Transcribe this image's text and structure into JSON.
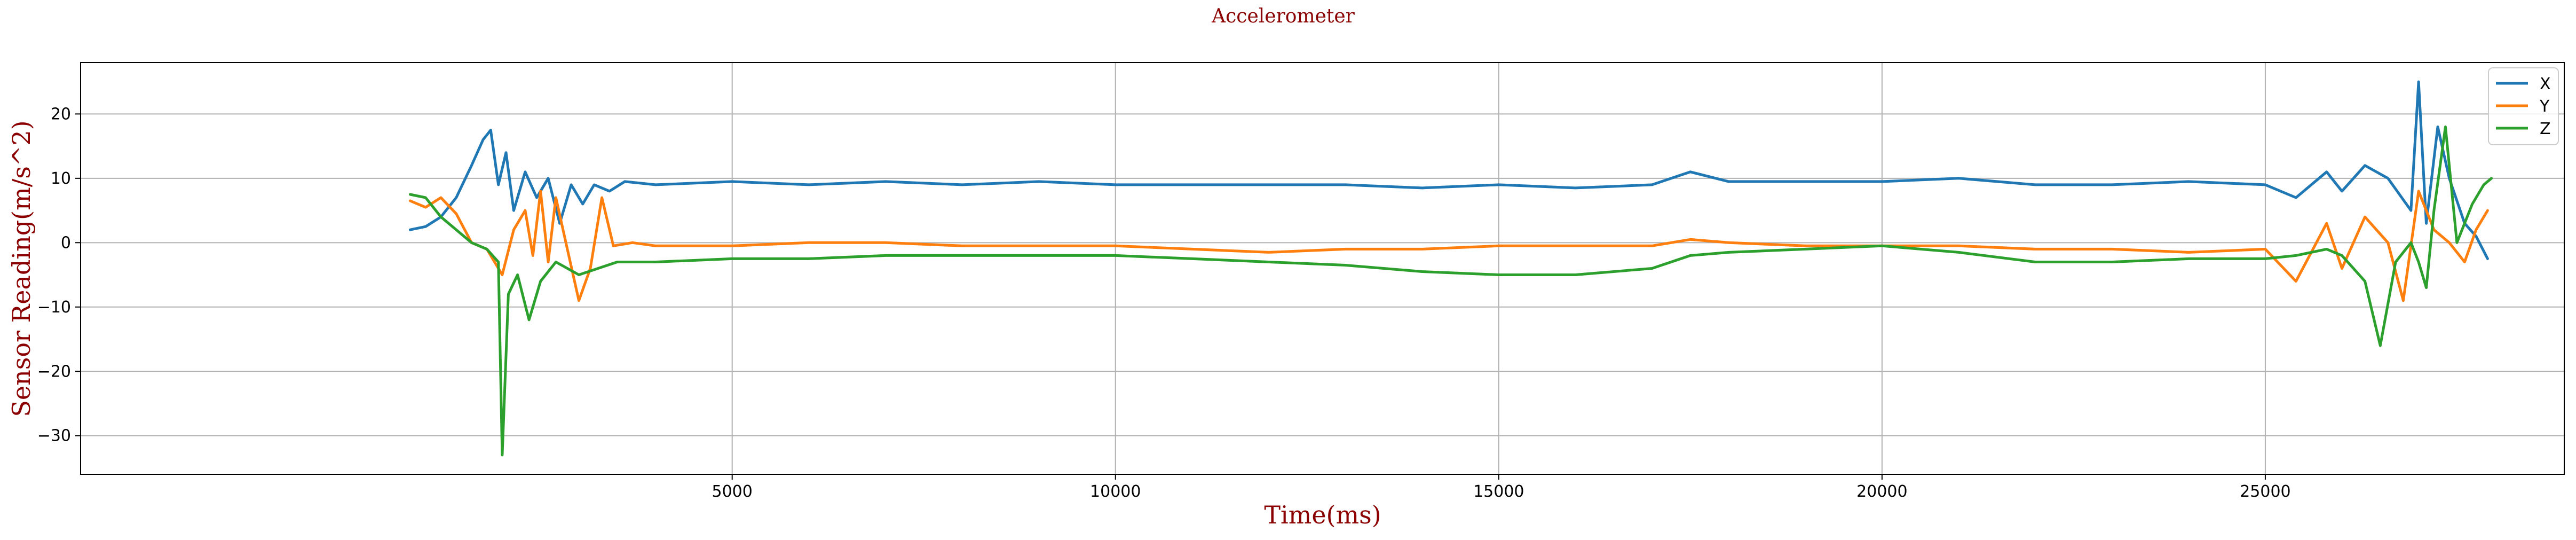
{
  "chart_data": {
    "type": "line",
    "title": "Accelerometer",
    "xlabel": "Time(ms)",
    "ylabel": "Sensor Reading(m/s^2)",
    "xlim": [
      -3500,
      28900
    ],
    "ylim": [
      -36,
      28
    ],
    "xticks": [
      5000,
      10000,
      15000,
      20000,
      25000
    ],
    "yticks": [
      -30,
      -20,
      -10,
      0,
      10,
      20
    ],
    "grid": true,
    "legend_position": "top-right",
    "series": [
      {
        "name": "X",
        "color": "#1f77b4",
        "points": [
          [
            800,
            2
          ],
          [
            1000,
            2.5
          ],
          [
            1200,
            4
          ],
          [
            1400,
            7
          ],
          [
            1600,
            12
          ],
          [
            1750,
            16
          ],
          [
            1850,
            17.5
          ],
          [
            1950,
            9
          ],
          [
            2050,
            14
          ],
          [
            2150,
            5
          ],
          [
            2300,
            11
          ],
          [
            2450,
            7
          ],
          [
            2600,
            10
          ],
          [
            2750,
            3
          ],
          [
            2900,
            9
          ],
          [
            3050,
            6
          ],
          [
            3200,
            9
          ],
          [
            3400,
            8
          ],
          [
            3600,
            9.5
          ],
          [
            4000,
            9
          ],
          [
            5000,
            9.5
          ],
          [
            6000,
            9
          ],
          [
            7000,
            9.5
          ],
          [
            8000,
            9
          ],
          [
            9000,
            9.5
          ],
          [
            10000,
            9
          ],
          [
            11000,
            9
          ],
          [
            12000,
            9
          ],
          [
            13000,
            9
          ],
          [
            14000,
            8.5
          ],
          [
            15000,
            9
          ],
          [
            16000,
            8.5
          ],
          [
            17000,
            9
          ],
          [
            17500,
            11
          ],
          [
            18000,
            9.5
          ],
          [
            19000,
            9.5
          ],
          [
            20000,
            9.5
          ],
          [
            21000,
            10
          ],
          [
            22000,
            9
          ],
          [
            23000,
            9
          ],
          [
            24000,
            9.5
          ],
          [
            25000,
            9
          ],
          [
            25400,
            7
          ],
          [
            25800,
            11
          ],
          [
            26000,
            8
          ],
          [
            26300,
            12
          ],
          [
            26600,
            10
          ],
          [
            26900,
            5
          ],
          [
            27000,
            25
          ],
          [
            27100,
            3
          ],
          [
            27250,
            18
          ],
          [
            27400,
            10
          ],
          [
            27600,
            3
          ],
          [
            27750,
            1
          ],
          [
            27900,
            -2.5
          ]
        ]
      },
      {
        "name": "Y",
        "color": "#ff7f0e",
        "points": [
          [
            800,
            6.5
          ],
          [
            1000,
            5.5
          ],
          [
            1200,
            7
          ],
          [
            1400,
            4.5
          ],
          [
            1600,
            0
          ],
          [
            1800,
            -1
          ],
          [
            2000,
            -5
          ],
          [
            2150,
            2
          ],
          [
            2300,
            5
          ],
          [
            2400,
            -2
          ],
          [
            2500,
            8
          ],
          [
            2600,
            -3
          ],
          [
            2700,
            7
          ],
          [
            2850,
            -1
          ],
          [
            3000,
            -9
          ],
          [
            3150,
            -4
          ],
          [
            3300,
            7
          ],
          [
            3450,
            -0.5
          ],
          [
            3700,
            0
          ],
          [
            4000,
            -0.5
          ],
          [
            5000,
            -0.5
          ],
          [
            6000,
            0
          ],
          [
            7000,
            0
          ],
          [
            8000,
            -0.5
          ],
          [
            9000,
            -0.5
          ],
          [
            10000,
            -0.5
          ],
          [
            11000,
            -1
          ],
          [
            12000,
            -1.5
          ],
          [
            13000,
            -1
          ],
          [
            14000,
            -1
          ],
          [
            15000,
            -0.5
          ],
          [
            16000,
            -0.5
          ],
          [
            17000,
            -0.5
          ],
          [
            17500,
            0.5
          ],
          [
            18000,
            0
          ],
          [
            19000,
            -0.5
          ],
          [
            20000,
            -0.5
          ],
          [
            21000,
            -0.5
          ],
          [
            22000,
            -1
          ],
          [
            23000,
            -1
          ],
          [
            24000,
            -1.5
          ],
          [
            25000,
            -1
          ],
          [
            25400,
            -6
          ],
          [
            25800,
            3
          ],
          [
            26000,
            -4
          ],
          [
            26300,
            4
          ],
          [
            26600,
            0
          ],
          [
            26800,
            -9
          ],
          [
            27000,
            8
          ],
          [
            27200,
            2
          ],
          [
            27400,
            0
          ],
          [
            27600,
            -3
          ],
          [
            27750,
            2
          ],
          [
            27900,
            5
          ]
        ]
      },
      {
        "name": "Z",
        "color": "#2ca02c",
        "points": [
          [
            800,
            7.5
          ],
          [
            1000,
            7
          ],
          [
            1200,
            4
          ],
          [
            1400,
            2
          ],
          [
            1600,
            0
          ],
          [
            1800,
            -1
          ],
          [
            1950,
            -3
          ],
          [
            2000,
            -33
          ],
          [
            2080,
            -8
          ],
          [
            2200,
            -5
          ],
          [
            2350,
            -12
          ],
          [
            2500,
            -6
          ],
          [
            2700,
            -3
          ],
          [
            3000,
            -5
          ],
          [
            3500,
            -3
          ],
          [
            4000,
            -3
          ],
          [
            5000,
            -2.5
          ],
          [
            6000,
            -2.5
          ],
          [
            7000,
            -2
          ],
          [
            8000,
            -2
          ],
          [
            9000,
            -2
          ],
          [
            10000,
            -2
          ],
          [
            11000,
            -2.5
          ],
          [
            12000,
            -3
          ],
          [
            13000,
            -3.5
          ],
          [
            14000,
            -4.5
          ],
          [
            15000,
            -5
          ],
          [
            16000,
            -5
          ],
          [
            17000,
            -4
          ],
          [
            17500,
            -2
          ],
          [
            18000,
            -1.5
          ],
          [
            19000,
            -1
          ],
          [
            20000,
            -0.5
          ],
          [
            21000,
            -1.5
          ],
          [
            22000,
            -3
          ],
          [
            23000,
            -3
          ],
          [
            24000,
            -2.5
          ],
          [
            25000,
            -2.5
          ],
          [
            25400,
            -2
          ],
          [
            25800,
            -1
          ],
          [
            26000,
            -2
          ],
          [
            26300,
            -6
          ],
          [
            26500,
            -16
          ],
          [
            26700,
            -3
          ],
          [
            26900,
            0
          ],
          [
            27000,
            -3
          ],
          [
            27100,
            -7
          ],
          [
            27200,
            5
          ],
          [
            27350,
            18
          ],
          [
            27500,
            0
          ],
          [
            27700,
            6
          ],
          [
            27850,
            9
          ],
          [
            27950,
            10
          ]
        ]
      }
    ]
  }
}
